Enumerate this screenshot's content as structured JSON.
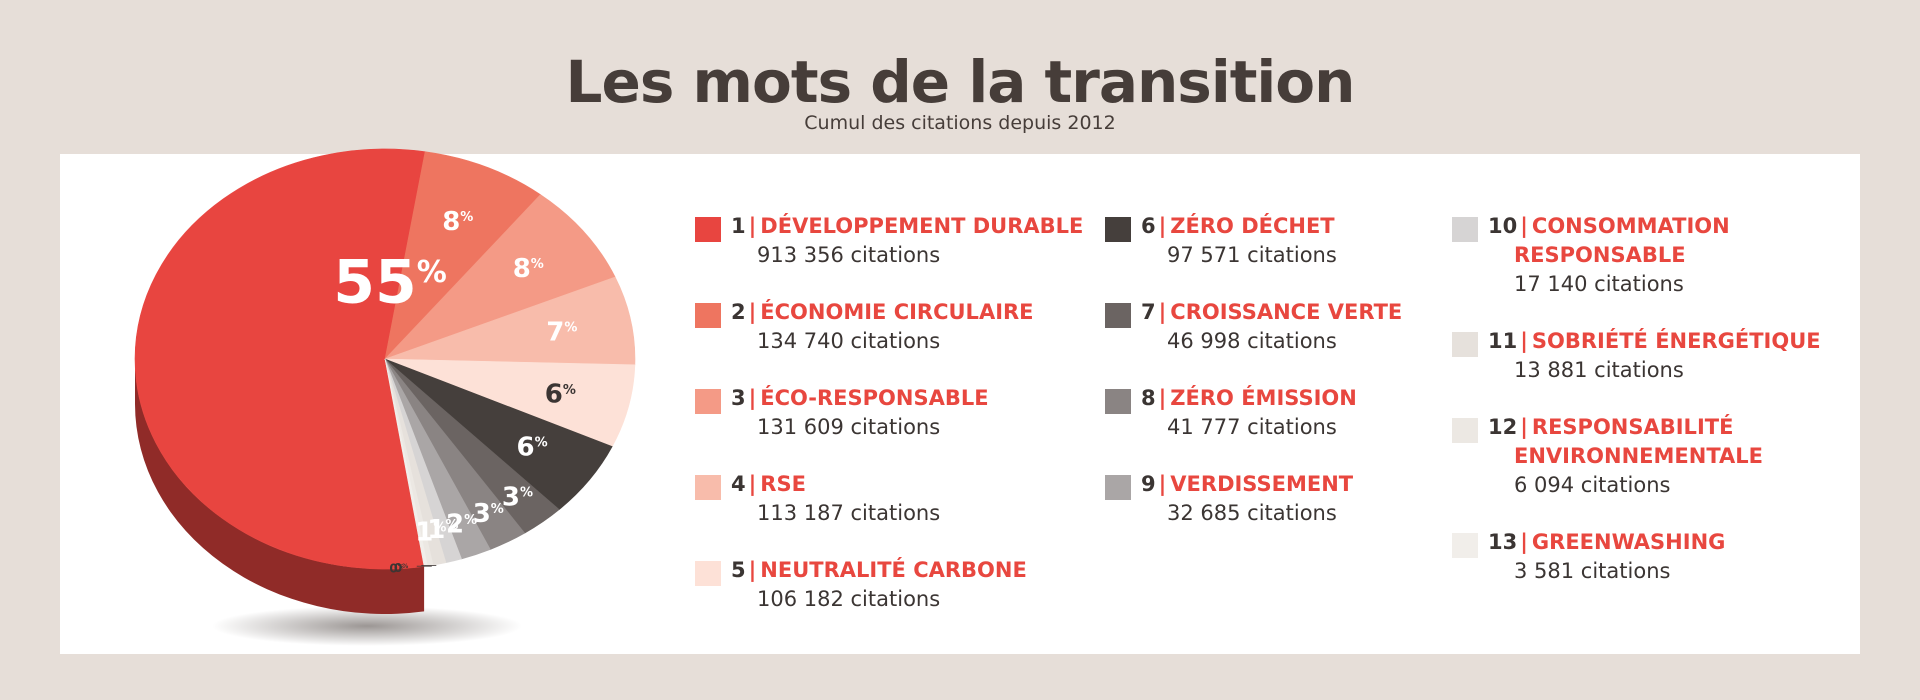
{
  "title": "Les mots de la transition",
  "subtitle": "Cumul des citations depuis 2012",
  "chart_data": {
    "type": "pie",
    "title": "Les mots de la transition",
    "subtitle": "Cumul des citations depuis 2012",
    "slices": [
      {
        "rank": "1",
        "label": "DÉVELOPPEMENT DURABLE",
        "value": 913356,
        "count_text": "913 356 citations",
        "pct_label": "55",
        "color": "#e84540"
      },
      {
        "rank": "2",
        "label": "ÉCONOMIE CIRCULAIRE",
        "value": 134740,
        "count_text": "134 740 citations",
        "pct_label": "8",
        "color": "#ee7560"
      },
      {
        "rank": "3",
        "label": "ÉCO-RESPONSABLE",
        "value": 131609,
        "count_text": "131 609 citations",
        "pct_label": "8",
        "color": "#f49a86"
      },
      {
        "rank": "4",
        "label": "RSE",
        "value": 113187,
        "count_text": "113 187 citations",
        "pct_label": "7",
        "color": "#f8bcab"
      },
      {
        "rank": "5",
        "label": "NEUTRALITÉ CARBONE",
        "value": 106182,
        "count_text": "106 182 citations",
        "pct_label": "6",
        "color": "#fde1d7"
      },
      {
        "rank": "6",
        "label": "ZÉRO DÉCHET",
        "value": 97571,
        "count_text": "97 571 citations",
        "pct_label": "6",
        "color": "#453f3c"
      },
      {
        "rank": "7",
        "label": "CROISSANCE VERTE",
        "value": 46998,
        "count_text": "46 998 citations",
        "pct_label": "3",
        "color": "#6b6462"
      },
      {
        "rank": "8",
        "label": "ZÉRO ÉMISSION",
        "value": 41777,
        "count_text": "41 777 citations",
        "pct_label": "3",
        "color": "#8a8483"
      },
      {
        "rank": "9",
        "label": "VERDISSEMENT",
        "value": 32685,
        "count_text": "32 685 citations",
        "pct_label": "2",
        "color": "#aaa6a6"
      },
      {
        "rank": "10",
        "label": "CONSOMMATION",
        "label_line2": "RESPONSABLE",
        "value": 17140,
        "count_text": "17 140 citations",
        "pct_label": "1",
        "color": "#d6d4d4"
      },
      {
        "rank": "11",
        "label": "SOBRIÉTÉ ÉNERGÉTIQUE",
        "value": 13881,
        "count_text": "13 881 citations",
        "pct_label": "1",
        "color": "#e6e1dc"
      },
      {
        "rank": "12",
        "label": "RESPONSABILITÉ",
        "label_line2": "ENVIRONNEMENTALE",
        "value": 6094,
        "count_text": "6 094 citations",
        "pct_label": "0",
        "color": "#ece8e3"
      },
      {
        "rank": "13",
        "label": "GREENWASHING",
        "value": 3581,
        "count_text": "3 581 citations",
        "pct_label": "0",
        "color": "#f1eeea"
      }
    ],
    "pct_suffix": "%",
    "legend_separator": "|",
    "legend_position": "right"
  }
}
